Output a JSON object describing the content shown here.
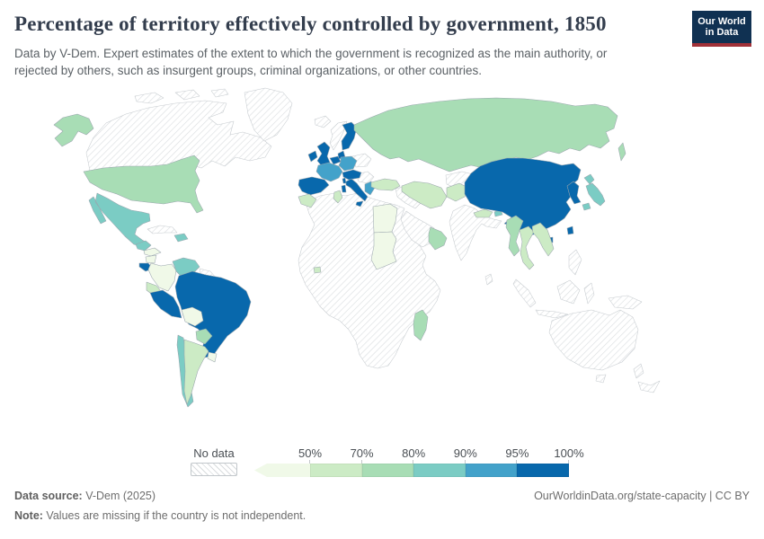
{
  "header": {
    "title": "Percentage of territory effectively controlled by government, 1850",
    "subtitle": "Data by V-Dem. Expert estimates of the extent to which the government is recognized as the main authority, or rejected by others, such as insurgent groups, criminal organizations, or other countries.",
    "logo": {
      "line1": "Our World",
      "line2": "in Data",
      "bg_color": "#103152",
      "accent_color": "#a13138"
    }
  },
  "legend": {
    "no_data_label": "No data"
  },
  "footer": {
    "data_source_label": "Data source:",
    "data_source_value": " V-Dem (2025)",
    "note_label": "Note:",
    "note_value": " Values are missing if the country is not independent.",
    "link": "OurWorldinData.org/state-capacity | CC BY"
  },
  "chart_data": {
    "type": "choropleth_map",
    "title": "Percentage of territory effectively controlled by government",
    "year": 1850,
    "unit": "% of territory",
    "no_data_meaning": "Values are missing if the country is not independent",
    "bins": [
      {
        "key": "lt-50",
        "label": "50%",
        "range": "<50%",
        "color": "#f0f9e8"
      },
      {
        "key": "50-70",
        "label": "70%",
        "range": "50-70%",
        "color": "#ccebc5"
      },
      {
        "key": "70-80",
        "label": "80%",
        "range": "70-80%",
        "color": "#a8ddb5"
      },
      {
        "key": "80-90",
        "label": "90%",
        "range": "80-90%",
        "color": "#7bccc4"
      },
      {
        "key": "90-95",
        "label": "95%",
        "range": "90-95%",
        "color": "#43a2ca"
      },
      {
        "key": "95-100",
        "label": "100%",
        "range": "95-100%",
        "color": "#0868ac"
      }
    ],
    "regions": {
      "canada": "no-data",
      "greenland": "no-data",
      "iceland": "no-data",
      "norway": "no-data",
      "cuba": "no-data",
      "guyanas": "no-data",
      "panama": "no-data",
      "africa": "no-data",
      "arabia": "no-data",
      "levant-iraq": "no-data",
      "central-asia": "no-data",
      "india": "no-data",
      "sri-lanka": "no-data",
      "mongolia": "no-data",
      "indonesia": "no-data",
      "new-guinea": "no-data",
      "philippines": "no-data",
      "australia": "no-data",
      "new-zealand": "no-data",
      "balkans": "no-data",
      "poland-east-europe": "no-data",
      "arctic-islands": "no-data",
      "united-states": "70-80",
      "russia": "70-80",
      "paraguay": "70-80",
      "madagascar": "70-80",
      "oman-yemen": "70-80",
      "myanmar": "70-80",
      "mexico": "80-90",
      "guatemala": "80-90",
      "hispaniola": "80-90",
      "venezuela": "80-90",
      "chile": "80-90",
      "bhutan": "80-90",
      "japan": "80-90",
      "honduras": "lt-50",
      "nicaragua": "lt-50",
      "colombia": "lt-50",
      "bolivia": "lt-50",
      "uruguay": "lt-50",
      "egypt": "lt-50",
      "sudan": "lt-50",
      "ecuador": "50-70",
      "argentina": "50-70",
      "turkey": "50-70",
      "morocco": "50-70",
      "tunisia": "50-70",
      "liberia": "50-70",
      "iran": "50-70",
      "afghanistan": "50-70",
      "nepal": "50-70",
      "thailand": "50-70",
      "vietnam": "50-70",
      "costa-rica": "95-100",
      "peru": "95-100",
      "brazil": "95-100",
      "united-kingdom": "95-100",
      "ireland": "95-100",
      "sweden": "95-100",
      "denmark": "95-100",
      "netherlands-belgium": "95-100",
      "spain-portugal": "95-100",
      "italy": "95-100",
      "switzerland-austria": "95-100",
      "china": "95-100",
      "korea": "95-100",
      "germany": "90-95",
      "france": "90-95",
      "greece": "90-95"
    }
  }
}
